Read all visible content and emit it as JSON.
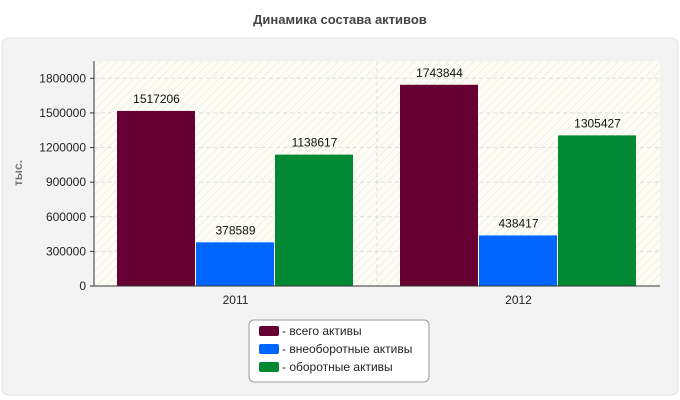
{
  "chart_data": {
    "type": "bar",
    "title": "Динамика состава активов",
    "ylabel": "тыс.",
    "xlabel": "",
    "categories": [
      "2011",
      "2012"
    ],
    "ylim": [
      0,
      1950000
    ],
    "yticks": [
      0,
      300000,
      600000,
      900000,
      1200000,
      1500000,
      1800000
    ],
    "ytick_labels": [
      "0",
      "300000",
      "600000",
      "900000",
      "1200000",
      "1500000",
      "1800000"
    ],
    "grid": true,
    "legend_position": "bottom-center",
    "series": [
      {
        "name": "- всего активы",
        "color": "#660033",
        "values": [
          1517206,
          1743844
        ],
        "labels": [
          "1517206",
          "1743844"
        ]
      },
      {
        "name": "- внеоборотные активы",
        "color": "#0066ff",
        "values": [
          378589,
          438417
        ],
        "labels": [
          "378589",
          "438417"
        ]
      },
      {
        "name": "- оборотные активы",
        "color": "#008833",
        "values": [
          1138617,
          1305427
        ],
        "labels": [
          "1138617",
          "1305427"
        ]
      }
    ]
  }
}
